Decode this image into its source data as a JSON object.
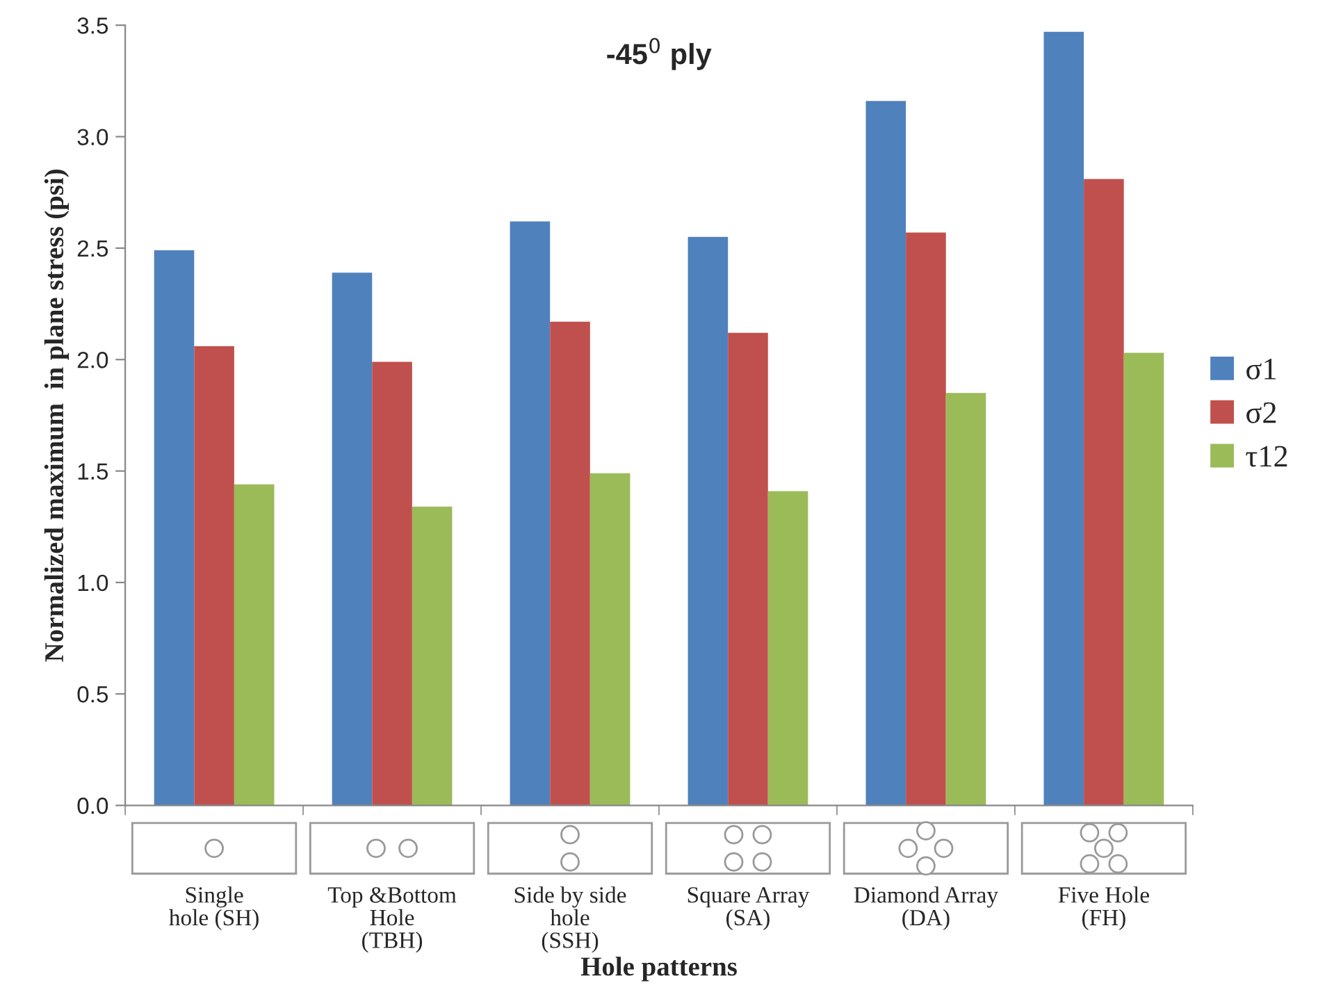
{
  "chart_data": {
    "type": "bar",
    "title": "-45$^{0}$ ply",
    "xlabel": "Hole patterns",
    "ylabel": "Normalized maximum  in plane stress (psi)",
    "categories": [
      "Single\nhole (SH)",
      "Top &Bottom\nHole\n(TBH)",
      "Side by side\nhole\n(SSH)",
      "Square Array\n(SA)",
      "Diamond Array\n(DA)",
      "Five Hole\n(FH)"
    ],
    "series": [
      {
        "name": "σ1",
        "color": "#4f81bd",
        "values": [
          2.49,
          2.39,
          2.62,
          2.55,
          3.16,
          3.47
        ]
      },
      {
        "name": "σ2",
        "color": "#c0504d",
        "values": [
          2.06,
          1.99,
          2.17,
          2.12,
          2.57,
          2.81
        ]
      },
      {
        "name": "τ12",
        "color": "#9bbb59",
        "values": [
          1.44,
          1.34,
          1.49,
          1.41,
          1.85,
          2.03
        ]
      }
    ],
    "ylim": [
      0,
      3.5
    ],
    "yticks": [
      {
        "value": 0,
        "label": "0.0"
      },
      {
        "value": 0.5,
        "label": "0.5"
      },
      {
        "value": 1,
        "label": "1.0"
      },
      {
        "value": 1.5,
        "label": "1.5"
      },
      {
        "value": 2,
        "label": "2.0"
      },
      {
        "value": 2.5,
        "label": "2.5"
      },
      {
        "value": 3,
        "label": "3.0"
      },
      {
        "value": 3.5,
        "label": "3.5"
      }
    ],
    "grid": false,
    "legend": "right"
  }
}
